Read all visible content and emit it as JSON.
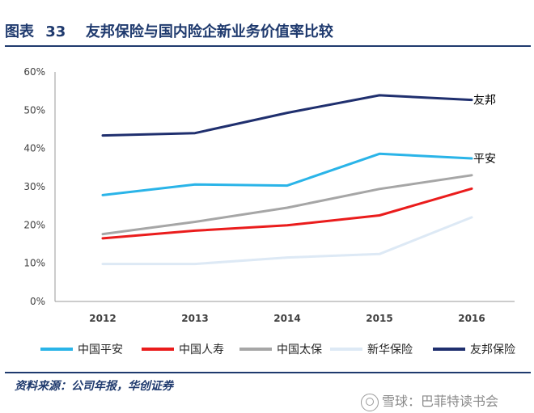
{
  "title": {
    "fig_label": "图表",
    "fig_num": "33",
    "text": "友邦保险与国内险企新业务价值率比较"
  },
  "source": "资料来源：公司年报，华创证券",
  "watermark": {
    "icon": "snowball-icon",
    "text": "雪球：巴菲特读书会"
  },
  "chart_data": {
    "type": "line",
    "title": "友邦保险与国内险企新业务价值率比较",
    "xlabel": "",
    "ylabel": "",
    "x": [
      "2012",
      "2013",
      "2014",
      "2015",
      "2016"
    ],
    "ylim": [
      0,
      60
    ],
    "yticks": [
      "0%",
      "10%",
      "20%",
      "30%",
      "40%",
      "50%",
      "60%"
    ],
    "grid": false,
    "legend_position": "bottom",
    "series": [
      {
        "name": "中国平安",
        "color": "#2ab4e8",
        "values": [
          27.8,
          30.6,
          30.3,
          38.6,
          37.4
        ]
      },
      {
        "name": "中国人寿",
        "color": "#ea1c1c",
        "values": [
          16.5,
          18.5,
          19.9,
          22.5,
          29.5
        ]
      },
      {
        "name": "中国太保",
        "color": "#a6a6a6",
        "values": [
          17.6,
          20.8,
          24.5,
          29.4,
          33.0
        ]
      },
      {
        "name": "新华保险",
        "color": "#dde9f5",
        "values": [
          9.8,
          9.8,
          11.5,
          12.4,
          22.0
        ]
      },
      {
        "name": "友邦保险",
        "color": "#1f2f6e",
        "values": [
          43.4,
          44.0,
          49.3,
          53.9,
          52.7
        ]
      }
    ],
    "annotations": [
      {
        "text": "友邦",
        "series": "友邦保险",
        "x": "2016"
      },
      {
        "text": "平安",
        "series": "中国平安",
        "x": "2016"
      }
    ]
  }
}
